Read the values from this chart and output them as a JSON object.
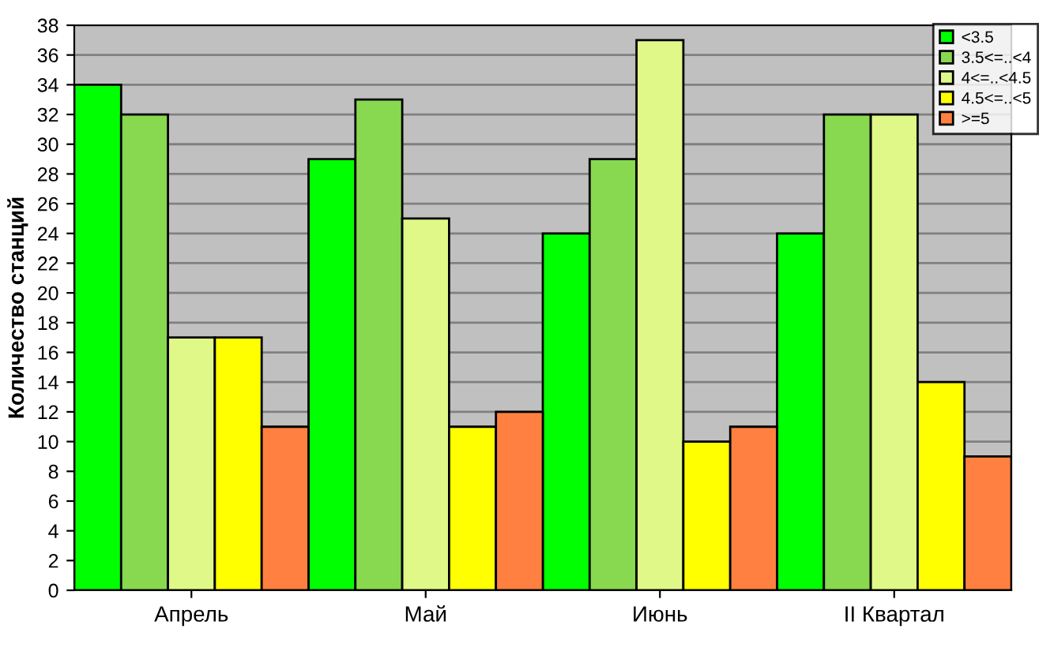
{
  "chart_data": {
    "type": "bar",
    "ylabel": "Количество станций",
    "categories": [
      "Апрель",
      "Май",
      "Июнь",
      "II Квартал"
    ],
    "series": [
      {
        "name": "<3.5",
        "color": "#00ff00",
        "values": [
          34,
          29,
          24,
          24
        ]
      },
      {
        "name": "3.5<=..<4",
        "color": "#88d850",
        "values": [
          32,
          33,
          29,
          32
        ]
      },
      {
        "name": "4<=..<4.5",
        "color": "#e0f888",
        "values": [
          17,
          25,
          37,
          32
        ]
      },
      {
        "name": "4.5<=..<5",
        "color": "#ffff00",
        "values": [
          17,
          11,
          10,
          14
        ]
      },
      {
        "name": ">=5",
        "color": "#ff8040",
        "values": [
          11,
          12,
          11,
          9
        ]
      }
    ],
    "ylim": [
      0,
      38
    ],
    "yticks": [
      0,
      2,
      4,
      6,
      8,
      10,
      12,
      14,
      16,
      18,
      20,
      22,
      24,
      26,
      28,
      30,
      32,
      34,
      36,
      38
    ],
    "grid": "y",
    "legend": "top right"
  }
}
